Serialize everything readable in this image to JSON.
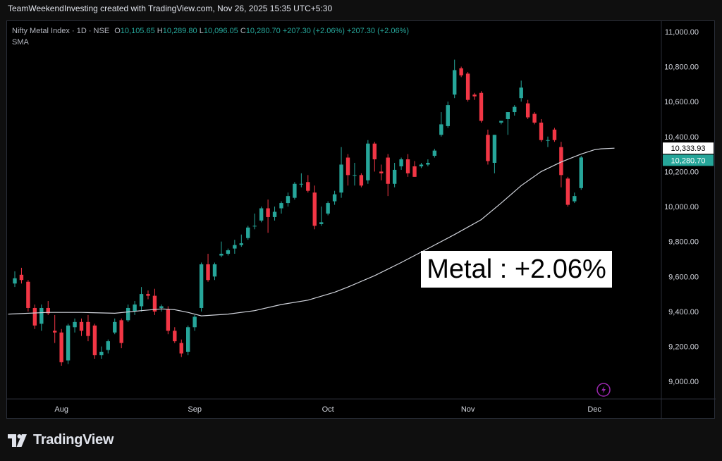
{
  "header": {
    "caption": "TeamWeekendInvesting created with TradingView.com, Nov 26, 2025 15:35 UTC+5:30"
  },
  "legend": {
    "symbol": "Nifty Metal Index · 1D · NSE",
    "open_label": "O",
    "open": "10,105.65",
    "high_label": "H",
    "high": "10,289.80",
    "low_label": "L",
    "low": "10,096.05",
    "close_label": "C",
    "close": "10,280.70",
    "change": "+207.30 (+2.06%)",
    "change_repeat": "+207.30 (+2.06%)",
    "indicator": "SMA"
  },
  "annotation": {
    "text": "Metal : +2.06%"
  },
  "price_tags": {
    "sma": "10,333.93",
    "last": "10,280.70"
  },
  "footer": {
    "brand": "TradingView"
  },
  "colors": {
    "up": "#26a69a",
    "down": "#f23645",
    "sma": "#d1d4dc",
    "background": "#000000",
    "last_tag": "#26a69a",
    "sma_tag": "#ffffff",
    "flash": "#9c27b0"
  },
  "icons": {
    "logo": "tradingview-logo-icon",
    "flash": "lightning-icon"
  },
  "chart_data": {
    "type": "candlestick",
    "title": "Nifty Metal Index · 1D · NSE",
    "ylim": [
      8900,
      11060
    ],
    "yticks": [
      9000,
      9200,
      9400,
      9600,
      9800,
      10000,
      10200,
      10400,
      10600,
      10800,
      11000
    ],
    "ytick_labels": [
      "9,000.00",
      "9,200.00",
      "9,400.00",
      "9,600.00",
      "9,800.00",
      "10,000.00",
      "10,200.00",
      "10,400.00",
      "10,600.00",
      "10,800.00",
      "11,000.00"
    ],
    "xticks": [
      {
        "label": "Aug",
        "index": 7
      },
      {
        "label": "Sep",
        "index": 27
      },
      {
        "label": "Oct",
        "index": 47
      },
      {
        "label": "Nov",
        "index": 68
      },
      {
        "label": "Dec",
        "index": 87
      }
    ],
    "candles": [
      {
        "o": 9560,
        "h": 9630,
        "l": 9540,
        "c": 9590
      },
      {
        "o": 9610,
        "h": 9650,
        "l": 9560,
        "c": 9580
      },
      {
        "o": 9570,
        "h": 9580,
        "l": 9400,
        "c": 9420
      },
      {
        "o": 9420,
        "h": 9440,
        "l": 9300,
        "c": 9320
      },
      {
        "o": 9330,
        "h": 9440,
        "l": 9290,
        "c": 9420
      },
      {
        "o": 9420,
        "h": 9460,
        "l": 9380,
        "c": 9390
      },
      {
        "o": 9290,
        "h": 9380,
        "l": 9220,
        "c": 9280
      },
      {
        "o": 9280,
        "h": 9300,
        "l": 9090,
        "c": 9110
      },
      {
        "o": 9120,
        "h": 9330,
        "l": 9100,
        "c": 9320
      },
      {
        "o": 9310,
        "h": 9360,
        "l": 9280,
        "c": 9340
      },
      {
        "o": 9340,
        "h": 9360,
        "l": 9260,
        "c": 9290
      },
      {
        "o": 9340,
        "h": 9380,
        "l": 9230,
        "c": 9260
      },
      {
        "o": 9320,
        "h": 9330,
        "l": 9130,
        "c": 9150
      },
      {
        "o": 9150,
        "h": 9200,
        "l": 9130,
        "c": 9170
      },
      {
        "o": 9180,
        "h": 9240,
        "l": 9160,
        "c": 9230
      },
      {
        "o": 9280,
        "h": 9360,
        "l": 9270,
        "c": 9340
      },
      {
        "o": 9350,
        "h": 9360,
        "l": 9190,
        "c": 9220
      },
      {
        "o": 9350,
        "h": 9440,
        "l": 9340,
        "c": 9420
      },
      {
        "o": 9400,
        "h": 9460,
        "l": 9380,
        "c": 9440
      },
      {
        "o": 9430,
        "h": 9540,
        "l": 9400,
        "c": 9500
      },
      {
        "o": 9500,
        "h": 9520,
        "l": 9470,
        "c": 9490
      },
      {
        "o": 9490,
        "h": 9530,
        "l": 9380,
        "c": 9400
      },
      {
        "o": 9420,
        "h": 9440,
        "l": 9400,
        "c": 9430
      },
      {
        "o": 9410,
        "h": 9430,
        "l": 9270,
        "c": 9290
      },
      {
        "o": 9290,
        "h": 9310,
        "l": 9220,
        "c": 9230
      },
      {
        "o": 9220,
        "h": 9240,
        "l": 9140,
        "c": 9160
      },
      {
        "o": 9170,
        "h": 9320,
        "l": 9150,
        "c": 9310
      },
      {
        "o": 9310,
        "h": 9380,
        "l": 9290,
        "c": 9370
      },
      {
        "o": 9420,
        "h": 9680,
        "l": 9400,
        "c": 9670
      },
      {
        "o": 9670,
        "h": 9730,
        "l": 9570,
        "c": 9580
      },
      {
        "o": 9600,
        "h": 9680,
        "l": 9580,
        "c": 9670
      },
      {
        "o": 9720,
        "h": 9800,
        "l": 9710,
        "c": 9730
      },
      {
        "o": 9730,
        "h": 9760,
        "l": 9720,
        "c": 9750
      },
      {
        "o": 9760,
        "h": 9810,
        "l": 9730,
        "c": 9780
      },
      {
        "o": 9780,
        "h": 9840,
        "l": 9770,
        "c": 9790
      },
      {
        "o": 9820,
        "h": 9890,
        "l": 9810,
        "c": 9880
      },
      {
        "o": 9890,
        "h": 9960,
        "l": 9870,
        "c": 9890
      },
      {
        "o": 9920,
        "h": 10000,
        "l": 9910,
        "c": 9990
      },
      {
        "o": 9990,
        "h": 10040,
        "l": 9850,
        "c": 9940
      },
      {
        "o": 9940,
        "h": 10000,
        "l": 9920,
        "c": 9970
      },
      {
        "o": 9990,
        "h": 10030,
        "l": 9960,
        "c": 10020
      },
      {
        "o": 10020,
        "h": 10080,
        "l": 10000,
        "c": 10060
      },
      {
        "o": 10050,
        "h": 10140,
        "l": 10040,
        "c": 10130
      },
      {
        "o": 10130,
        "h": 10190,
        "l": 10110,
        "c": 10130
      },
      {
        "o": 10140,
        "h": 10180,
        "l": 10080,
        "c": 10090
      },
      {
        "o": 10080,
        "h": 10120,
        "l": 9870,
        "c": 9890
      },
      {
        "o": 9900,
        "h": 10000,
        "l": 9890,
        "c": 9910
      },
      {
        "o": 9960,
        "h": 10030,
        "l": 9950,
        "c": 10020
      },
      {
        "o": 10030,
        "h": 10090,
        "l": 10010,
        "c": 10070
      },
      {
        "o": 10080,
        "h": 10340,
        "l": 10050,
        "c": 10240
      },
      {
        "o": 10280,
        "h": 10300,
        "l": 10120,
        "c": 10180
      },
      {
        "o": 10180,
        "h": 10250,
        "l": 10120,
        "c": 10180
      },
      {
        "o": 10180,
        "h": 10190,
        "l": 10110,
        "c": 10120
      },
      {
        "o": 10150,
        "h": 10380,
        "l": 10130,
        "c": 10360
      },
      {
        "o": 10360,
        "h": 10370,
        "l": 10200,
        "c": 10270
      },
      {
        "o": 10200,
        "h": 10240,
        "l": 10150,
        "c": 10190
      },
      {
        "o": 10280,
        "h": 10300,
        "l": 10060,
        "c": 10130
      },
      {
        "o": 10130,
        "h": 10250,
        "l": 10110,
        "c": 10210
      },
      {
        "o": 10230,
        "h": 10280,
        "l": 10210,
        "c": 10270
      },
      {
        "o": 10270,
        "h": 10300,
        "l": 10170,
        "c": 10190
      },
      {
        "o": 10230,
        "h": 10260,
        "l": 10170,
        "c": 10170
      },
      {
        "o": 10230,
        "h": 10250,
        "l": 10220,
        "c": 10240
      },
      {
        "o": 10240,
        "h": 10270,
        "l": 10230,
        "c": 10250
      },
      {
        "o": 10290,
        "h": 10330,
        "l": 10280,
        "c": 10320
      },
      {
        "o": 10410,
        "h": 10540,
        "l": 10400,
        "c": 10470
      },
      {
        "o": 10460,
        "h": 10600,
        "l": 10450,
        "c": 10580
      },
      {
        "o": 10640,
        "h": 10840,
        "l": 10620,
        "c": 10780
      },
      {
        "o": 10790,
        "h": 10800,
        "l": 10740,
        "c": 10750
      },
      {
        "o": 10760,
        "h": 10770,
        "l": 10600,
        "c": 10610
      },
      {
        "o": 10640,
        "h": 10650,
        "l": 10610,
        "c": 10630
      },
      {
        "o": 10650,
        "h": 10660,
        "l": 10480,
        "c": 10490
      },
      {
        "o": 10410,
        "h": 10440,
        "l": 10240,
        "c": 10260
      },
      {
        "o": 10250,
        "h": 10410,
        "l": 10190,
        "c": 10410
      },
      {
        "o": 10480,
        "h": 10490,
        "l": 10470,
        "c": 10490
      },
      {
        "o": 10500,
        "h": 10540,
        "l": 10410,
        "c": 10540
      },
      {
        "o": 10540,
        "h": 10580,
        "l": 10520,
        "c": 10570
      },
      {
        "o": 10620,
        "h": 10720,
        "l": 10600,
        "c": 10680
      },
      {
        "o": 10590,
        "h": 10610,
        "l": 10500,
        "c": 10510
      },
      {
        "o": 10530,
        "h": 10540,
        "l": 10470,
        "c": 10480
      },
      {
        "o": 10480,
        "h": 10500,
        "l": 10370,
        "c": 10380
      },
      {
        "o": 10380,
        "h": 10400,
        "l": 10340,
        "c": 10380
      },
      {
        "o": 10440,
        "h": 10450,
        "l": 10370,
        "c": 10380
      },
      {
        "o": 10340,
        "h": 10370,
        "l": 10110,
        "c": 10180
      },
      {
        "o": 10160,
        "h": 10170,
        "l": 10000,
        "c": 10010
      },
      {
        "o": 10030,
        "h": 10080,
        "l": 10020,
        "c": 10060
      },
      {
        "o": 10105.65,
        "h": 10289.8,
        "l": 10096.05,
        "c": 10280.7
      }
    ],
    "sma": {
      "name": "SMA",
      "points": [
        [
          -1,
          9385
        ],
        [
          5,
          9395
        ],
        [
          10,
          9395
        ],
        [
          15,
          9390
        ],
        [
          19,
          9405
        ],
        [
          22,
          9415
        ],
        [
          24,
          9410
        ],
        [
          26,
          9395
        ],
        [
          28,
          9375
        ],
        [
          32,
          9385
        ],
        [
          36,
          9405
        ],
        [
          40,
          9440
        ],
        [
          44,
          9465
        ],
        [
          48,
          9510
        ],
        [
          50,
          9540
        ],
        [
          54,
          9605
        ],
        [
          58,
          9680
        ],
        [
          62,
          9760
        ],
        [
          66,
          9840
        ],
        [
          70,
          9925
        ],
        [
          73,
          10020
        ],
        [
          76,
          10120
        ],
        [
          79,
          10200
        ],
        [
          82,
          10255
        ],
        [
          85,
          10300
        ],
        [
          87,
          10325
        ],
        [
          88,
          10330
        ],
        [
          90,
          10333.93
        ]
      ]
    }
  }
}
